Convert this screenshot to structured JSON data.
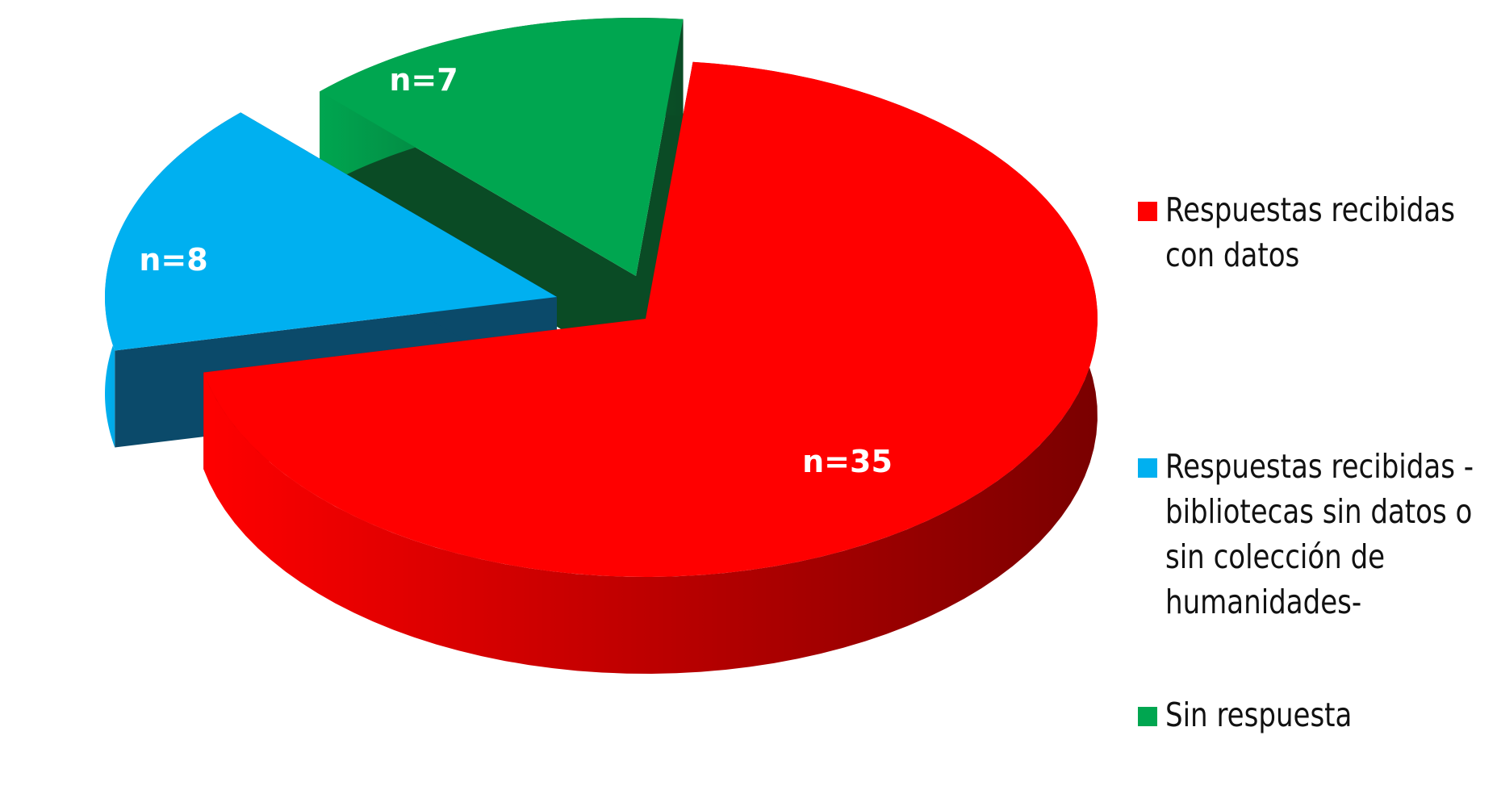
{
  "chart_data": {
    "type": "pie",
    "slices": [
      {
        "label": "n=35",
        "value": 35,
        "color": "#ff0000",
        "dark": "#7a0000",
        "legend": "Respuestas recibidas\ncon datos"
      },
      {
        "label": "n=8",
        "value": 8,
        "color": "#00b0f0",
        "dark": "#0b4a6a",
        "legend": "Respuestas recibidas -\nbibliotecas sin datos o\nsin colección de\nhumanidades-"
      },
      {
        "label": "n=7",
        "value": 7,
        "color": "#00a650",
        "dark": "#0a4b25",
        "legend": "Sin respuesta"
      }
    ],
    "legend_position": "right"
  }
}
